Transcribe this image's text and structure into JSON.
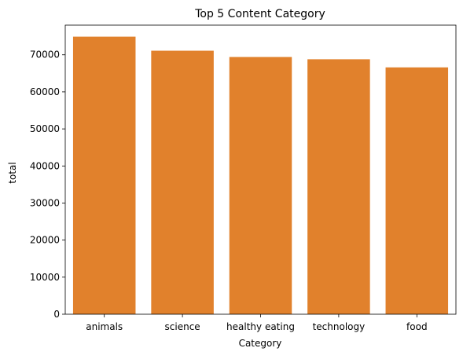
{
  "chart_data": {
    "type": "bar",
    "title": "Top 5 Content Category",
    "xlabel": "Category",
    "ylabel": "total",
    "categories": [
      "animals",
      "science",
      "healthy eating",
      "technology",
      "food"
    ],
    "values": [
      74900,
      71100,
      69400,
      68800,
      66600
    ],
    "ylim": [
      0,
      78000
    ],
    "yticks": [
      0,
      10000,
      20000,
      30000,
      40000,
      50000,
      60000,
      70000
    ],
    "ytick_labels": [
      "0",
      "10000",
      "20000",
      "30000",
      "40000",
      "50000",
      "60000",
      "70000"
    ],
    "bar_color": "#e1812c",
    "grid": false,
    "legend": "none"
  }
}
